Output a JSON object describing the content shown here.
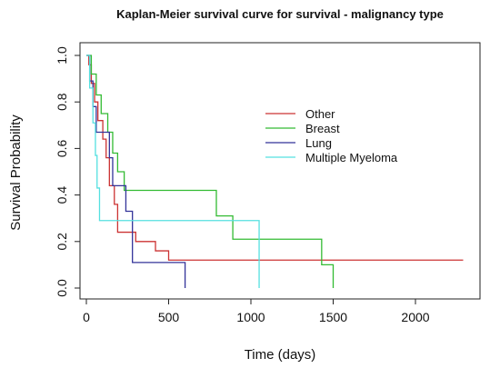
{
  "chart_data": {
    "type": "line",
    "title": "Kaplan-Meier survival curve for survival - malignancy type",
    "xlabel": "Time (days)",
    "ylabel": "Survival Probability",
    "xlim": [
      0,
      2400
    ],
    "ylim": [
      0,
      1.0
    ],
    "x_ticks": [
      0,
      500,
      1000,
      1500,
      2000
    ],
    "y_ticks": [
      0.0,
      0.2,
      0.4,
      0.6,
      0.8,
      1.0
    ],
    "x_tick_labels": [
      "0",
      "500",
      "1000",
      "1500",
      "2000"
    ],
    "y_tick_labels": [
      "0.0",
      "0.2",
      "0.4",
      "0.6",
      "0.8",
      "1.0"
    ],
    "step": true,
    "grid": false,
    "legend": {
      "position": "center-right",
      "entries": [
        "Other",
        "Breast",
        "Lung",
        "Multiple Myeloma"
      ]
    },
    "series": [
      {
        "name": "Other",
        "color": "#cc3333",
        "x": [
          0,
          15,
          30,
          50,
          70,
          100,
          120,
          140,
          170,
          190,
          250,
          300,
          420,
          500,
          2290
        ],
        "y": [
          1.0,
          0.96,
          0.88,
          0.8,
          0.72,
          0.64,
          0.56,
          0.44,
          0.36,
          0.24,
          0.24,
          0.2,
          0.16,
          0.12,
          0.12
        ]
      },
      {
        "name": "Breast",
        "color": "#33bb33",
        "x": [
          0,
          30,
          60,
          90,
          130,
          160,
          190,
          230,
          790,
          890,
          1430,
          1500
        ],
        "y": [
          1.0,
          0.92,
          0.83,
          0.75,
          0.67,
          0.58,
          0.5,
          0.42,
          0.31,
          0.21,
          0.1,
          0.0
        ],
        "end": 1500
      },
      {
        "name": "Lung",
        "color": "#333399",
        "x": [
          0,
          20,
          40,
          60,
          100,
          140,
          160,
          200,
          240,
          280,
          600
        ],
        "y": [
          1.0,
          0.89,
          0.78,
          0.67,
          0.67,
          0.56,
          0.44,
          0.44,
          0.33,
          0.11,
          0.0
        ],
        "end": 600
      },
      {
        "name": "Multiple Myeloma",
        "color": "#55e0e0",
        "x": [
          0,
          20,
          40,
          55,
          65,
          80,
          1050
        ],
        "y": [
          1.0,
          0.86,
          0.71,
          0.57,
          0.43,
          0.29,
          0.0
        ],
        "end": 1050
      }
    ]
  }
}
